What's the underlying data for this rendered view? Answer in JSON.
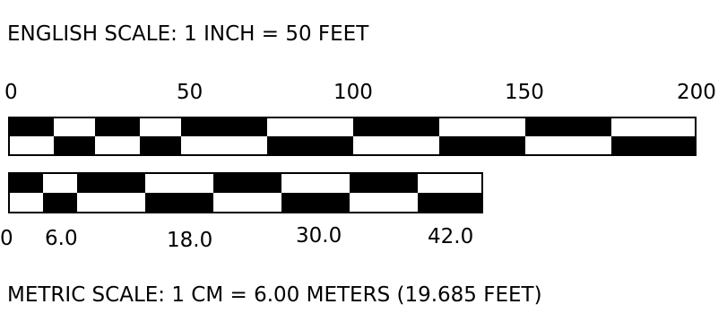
{
  "english": {
    "title": "ENGLISH SCALE: 1 INCH = 50 FEET",
    "ticks": [
      "0",
      "50",
      "100",
      "150",
      "200"
    ]
  },
  "metric": {
    "title": "METRIC SCALE: 1 CM = 6.00 METERS (19.685 FEET)",
    "ticks": [
      "0",
      "6.0",
      "18.0",
      "30.0",
      "42.0"
    ]
  },
  "colors": {
    "ink": "#000000",
    "paper": "#ffffff"
  }
}
